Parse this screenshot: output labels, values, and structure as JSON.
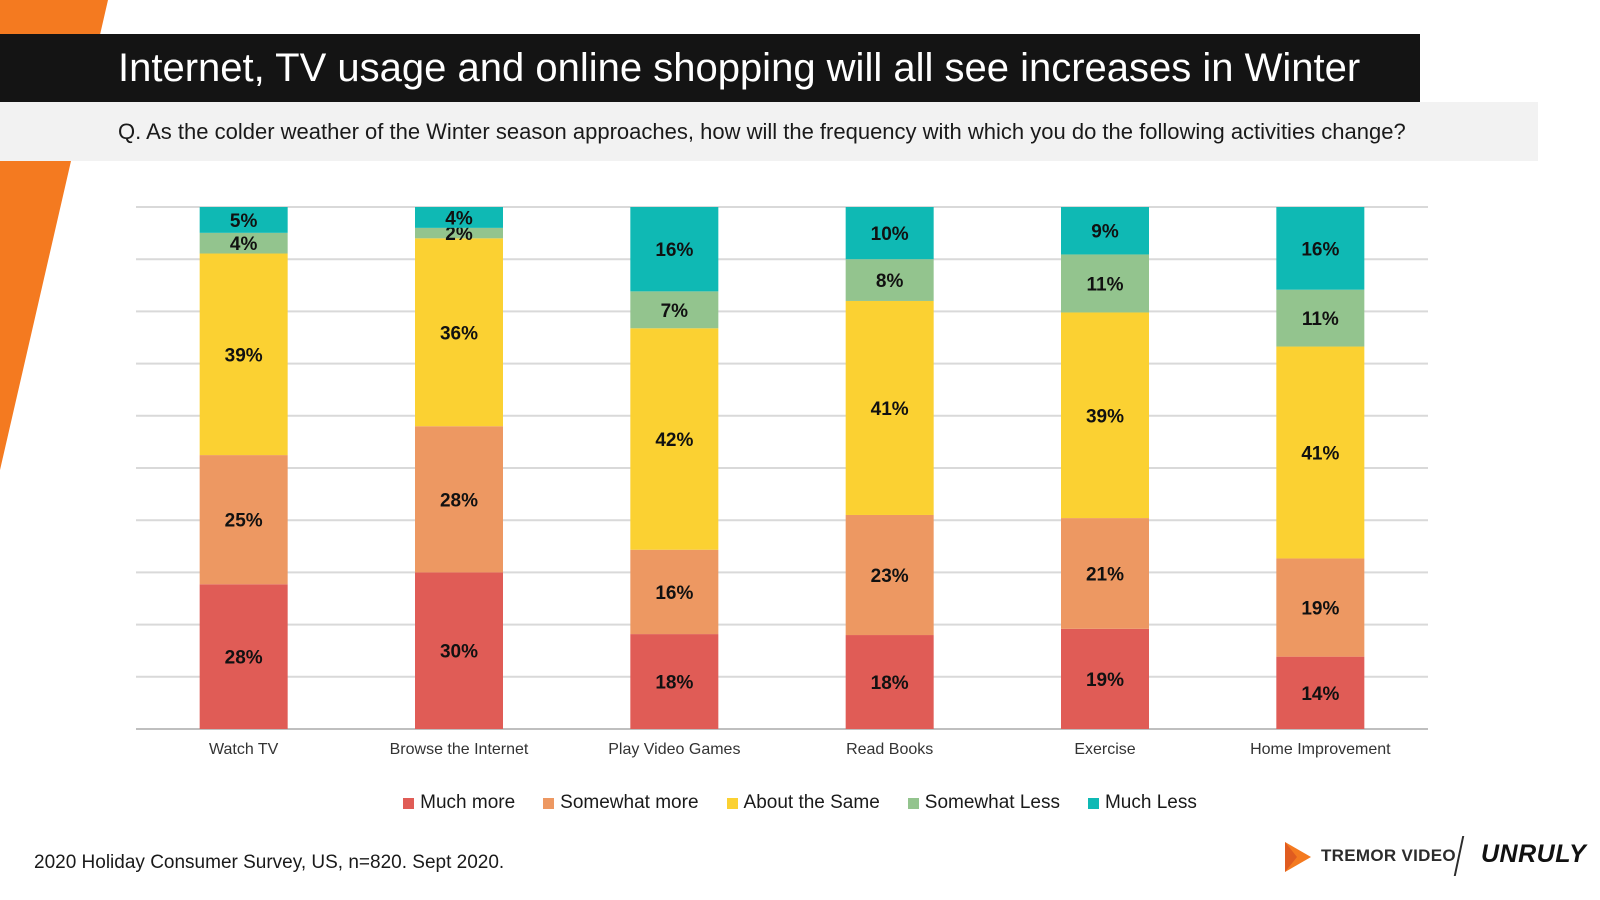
{
  "title": "Internet, TV usage and online shopping will all see increases in Winter",
  "question": "Q. As the colder weather of the Winter season approaches, how will the frequency with which you do the following activities change?",
  "source": "2020 Holiday Consumer Survey, US, n=820. Sept 2020.",
  "logos": {
    "tremor": "TREMOR VIDEO",
    "unruly": "UNRULY"
  },
  "colors": {
    "accent_stripe": "#f47a20",
    "title_background": "#141414"
  },
  "chart_data": {
    "type": "bar",
    "stacked": true,
    "percent_stacked": true,
    "categories": [
      "Watch TV",
      "Browse the Internet",
      "Play Video Games",
      "Read Books",
      "Exercise",
      "Home Improvement"
    ],
    "series": [
      {
        "name": "Much more",
        "color": "#e05c56",
        "values": [
          28,
          30,
          18,
          18,
          19,
          14
        ]
      },
      {
        "name": "Somewhat more",
        "color": "#ed9862",
        "values": [
          25,
          28,
          16,
          23,
          21,
          19
        ]
      },
      {
        "name": "About the Same",
        "color": "#fbd132",
        "values": [
          39,
          36,
          42,
          41,
          39,
          41
        ]
      },
      {
        "name": "Somewhat Less",
        "color": "#93c48e",
        "values": [
          4,
          2,
          7,
          8,
          11,
          11
        ]
      },
      {
        "name": "Much Less",
        "color": "#0fb9b4",
        "values": [
          5,
          4,
          16,
          10,
          9,
          16
        ]
      }
    ],
    "value_suffix": "%",
    "grid": true,
    "legend_position": "bottom"
  }
}
